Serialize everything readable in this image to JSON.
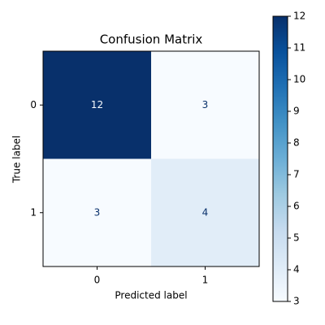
{
  "chart_data": {
    "type": "heatmap",
    "title": "Confusion Matrix",
    "x_label": "Predicted label",
    "y_label": "True label",
    "x_categories": [
      "0",
      "1"
    ],
    "y_categories": [
      "0",
      "1"
    ],
    "values": [
      [
        12,
        3
      ],
      [
        3,
        4
      ]
    ],
    "colormap": "Blues",
    "colorbar_lim": [
      3,
      12
    ],
    "colorbar_ticks": [
      3,
      4,
      5,
      6,
      7,
      8,
      9,
      10,
      11,
      12
    ]
  }
}
